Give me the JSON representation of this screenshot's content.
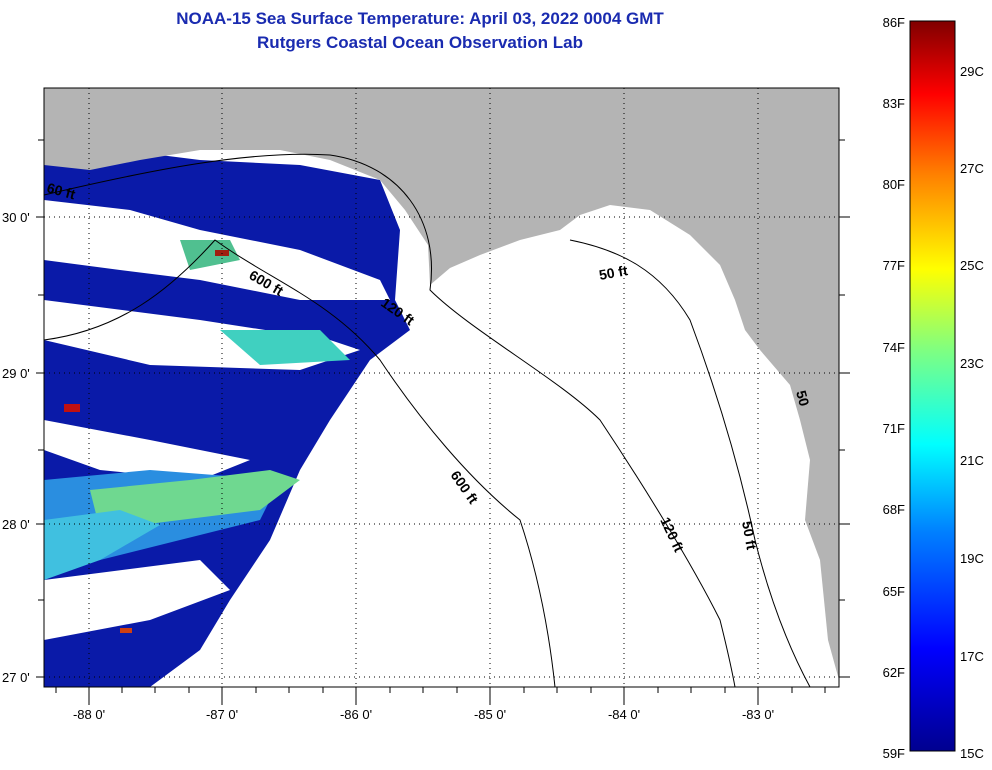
{
  "title": {
    "line1": "NOAA-15 Sea Surface Temperature:  April 03, 2022 0004 GMT",
    "line2": "Rutgers Coastal Ocean Observation Lab"
  },
  "axes": {
    "lon_labels": [
      "-88 0'",
      "-87 0'",
      "-86 0'",
      "-85 0'",
      "-84 0'",
      "-83 0'"
    ],
    "lon_values": [
      -88,
      -87,
      -86,
      -85,
      -84,
      -83
    ],
    "lat_labels": [
      "30 0'",
      "29 0'",
      "28 0'",
      "27 0'"
    ],
    "lat_values": [
      30,
      29,
      28,
      27
    ],
    "lon_range": [
      -88.33,
      -82.4
    ],
    "lat_range": [
      26.93,
      30.85
    ]
  },
  "contours": {
    "label_600_a": "600 ft",
    "label_600_b": "600 ft",
    "label_120_a": "120 ft",
    "label_120_b": "120 ft",
    "label_50_a": "50 ft",
    "label_50_b": "50 ft",
    "label_60": "60 ft",
    "label_50_c": "50"
  },
  "colorbar": {
    "f_labels": [
      "86F",
      "83F",
      "80F",
      "77F",
      "74F",
      "71F",
      "68F",
      "65F",
      "62F",
      "59F"
    ],
    "c_labels": [
      "29C",
      "27C",
      "25C",
      "23C",
      "21C",
      "19C",
      "17C",
      "15C"
    ],
    "f_range": [
      59,
      86
    ],
    "colors": [
      "#00008f",
      "#0000ff",
      "#0080ff",
      "#00ffff",
      "#80ff80",
      "#ffff00",
      "#ff8000",
      "#ff0000",
      "#800000"
    ]
  },
  "colors": {
    "land": "#b4b4b4",
    "title": "#1a2bb0"
  }
}
